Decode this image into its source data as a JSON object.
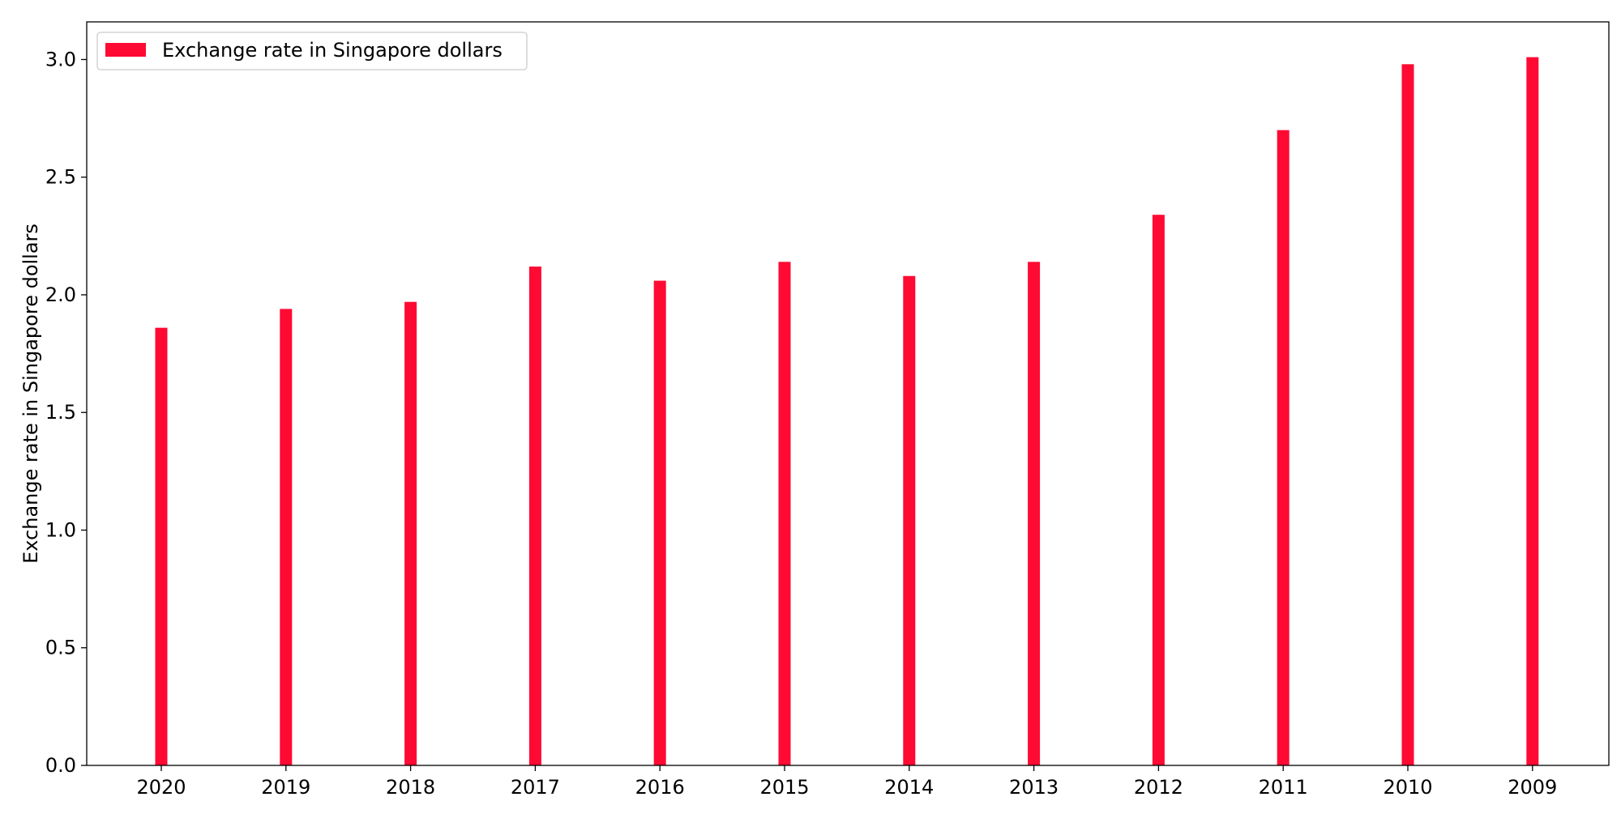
{
  "chart_data": {
    "type": "bar",
    "title": "",
    "xlabel": "",
    "ylabel": "Exchange rate in Singapore dollars",
    "categories": [
      "2020",
      "2019",
      "2018",
      "2017",
      "2016",
      "2015",
      "2014",
      "2013",
      "2012",
      "2011",
      "2010",
      "2009"
    ],
    "series": [
      {
        "name": "Exchange rate in Singapore dollars",
        "color": "#ff0a33",
        "values": [
          1.86,
          1.94,
          1.97,
          2.12,
          2.06,
          2.14,
          2.08,
          2.14,
          2.34,
          2.7,
          2.98,
          3.01
        ]
      }
    ],
    "ylim": [
      0,
      3.16
    ],
    "yticks": [
      "0.0",
      "0.5",
      "1.0",
      "1.5",
      "2.0",
      "2.5",
      "3.0"
    ],
    "grid": false,
    "legend_position": "top-left"
  }
}
